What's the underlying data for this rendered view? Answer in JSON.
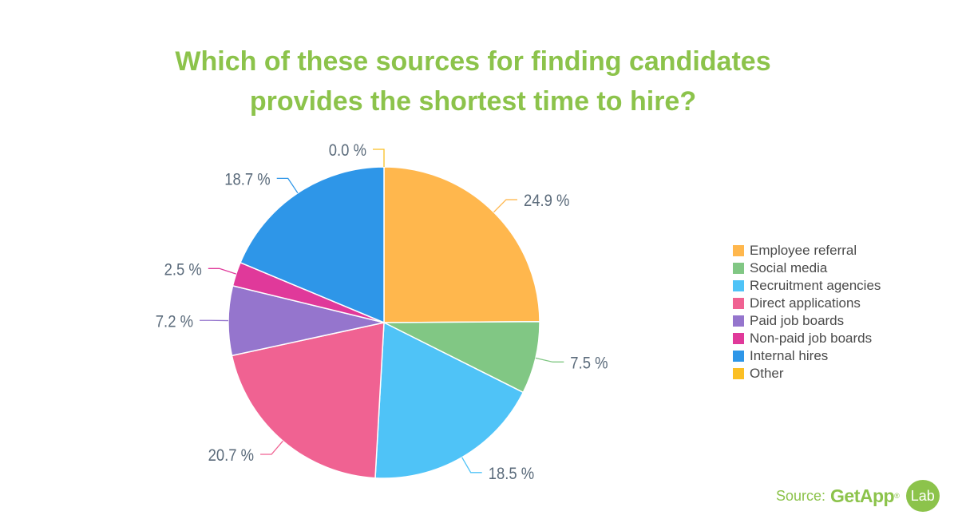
{
  "title_lines": [
    "Which of these sources for finding candidates",
    "provides the shortest time to hire?"
  ],
  "source": {
    "label": "Source:",
    "brand": "GetApp",
    "reg": "®",
    "badge": "Lab"
  },
  "chart_data": {
    "type": "pie",
    "title": "Which of these sources for finding candidates provides the shortest time to hire?",
    "legend_position": "right",
    "slices": [
      {
        "name": "Employee referral",
        "value": 24.9,
        "label": "24.9 %",
        "color": "#ffb74d"
      },
      {
        "name": "Social media",
        "value": 7.5,
        "label": "7.5 %",
        "color": "#81c784"
      },
      {
        "name": "Recruitment agencies",
        "value": 18.5,
        "label": "18.5 %",
        "color": "#4fc3f7"
      },
      {
        "name": "Direct applications",
        "value": 20.7,
        "label": "20.7 %",
        "color": "#f06292"
      },
      {
        "name": "Paid job boards",
        "value": 7.2,
        "label": "7.2 %",
        "color": "#9575cd"
      },
      {
        "name": "Non-paid job boards",
        "value": 2.5,
        "label": "2.5 %",
        "color": "#e0399a"
      },
      {
        "name": "Internal hires",
        "value": 18.7,
        "label": "18.7 %",
        "color": "#2e96e8"
      },
      {
        "name": "Other",
        "value": 0.0,
        "label": "0.0 %",
        "color": "#fbbf24"
      }
    ]
  }
}
